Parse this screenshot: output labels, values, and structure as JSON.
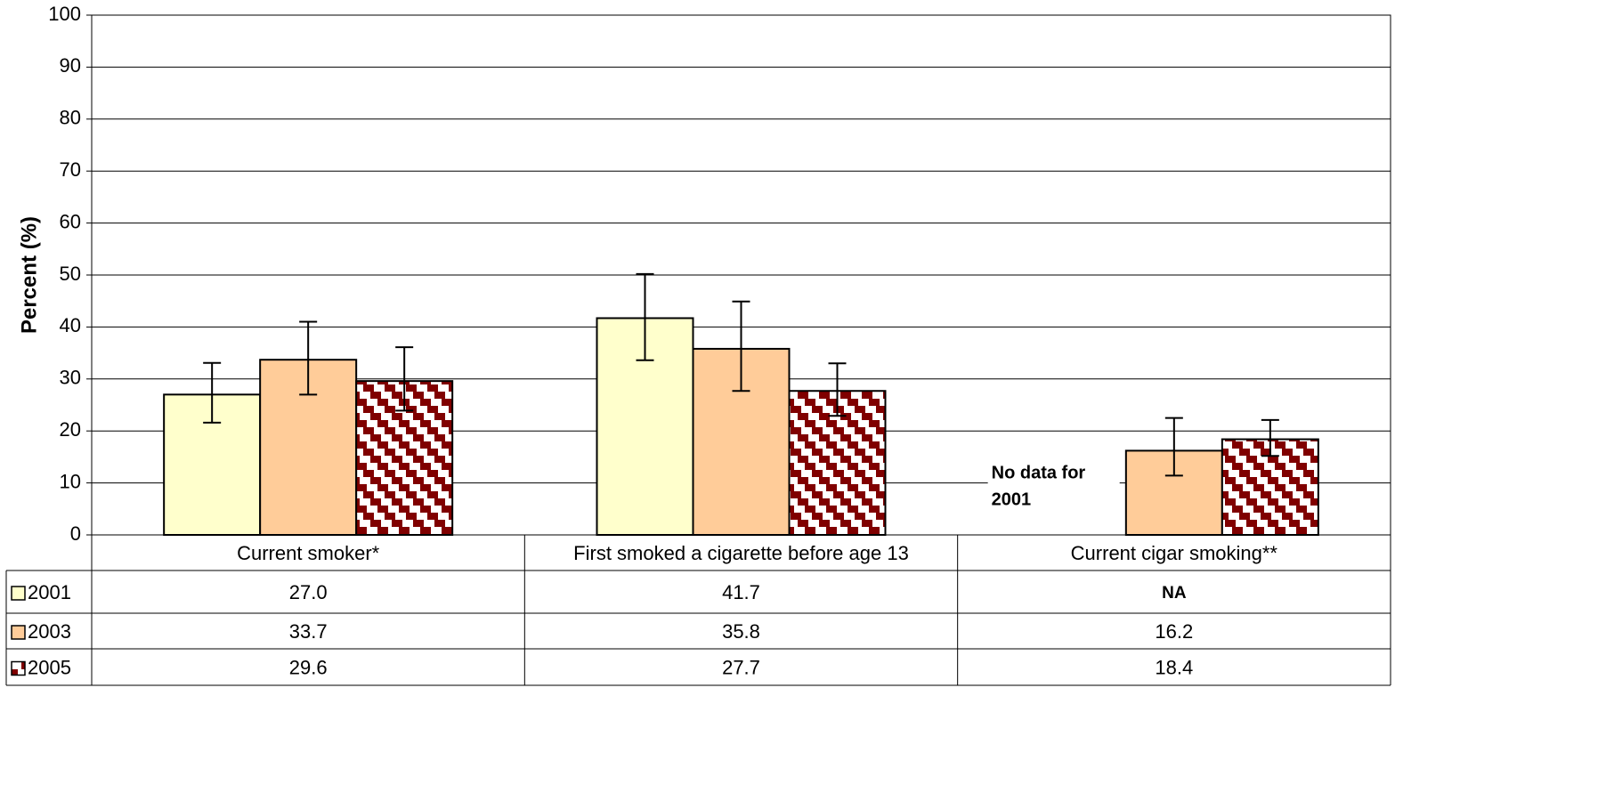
{
  "chart_data": {
    "type": "bar",
    "y_label": "Percent (%)",
    "categories": [
      "Current smoker*",
      "First smoked a cigarette before age 13",
      "Current cigar smoking**"
    ],
    "series": [
      {
        "name": "2001",
        "color": "#ffffcc",
        "values": [
          27.0,
          41.7,
          null
        ],
        "value_labels": [
          "27.0",
          "41.7",
          "NA"
        ],
        "lower": [
          21.6,
          33.6,
          null
        ],
        "upper": [
          33.1,
          50.2,
          null
        ]
      },
      {
        "name": "2003",
        "color": "#ffcc99",
        "values": [
          33.7,
          35.8,
          16.2
        ],
        "value_labels": [
          "33.7",
          "35.8",
          "16.2"
        ],
        "lower": [
          27.0,
          27.7,
          11.4
        ],
        "upper": [
          41.0,
          44.9,
          22.5
        ]
      },
      {
        "name": "2005",
        "color": "#800000",
        "pattern": "stairs",
        "values": [
          29.6,
          27.7,
          18.4
        ],
        "value_labels": [
          "29.6",
          "27.7",
          "18.4"
        ],
        "lower": [
          23.9,
          22.9,
          15.2
        ],
        "upper": [
          36.1,
          33.0,
          22.1
        ]
      }
    ],
    "annotation": [
      "No data for",
      "2001"
    ],
    "ylim": [
      0,
      100
    ],
    "yticks": [
      0,
      10,
      20,
      30,
      40,
      50,
      60,
      70,
      80,
      90,
      100
    ],
    "grid": true
  }
}
